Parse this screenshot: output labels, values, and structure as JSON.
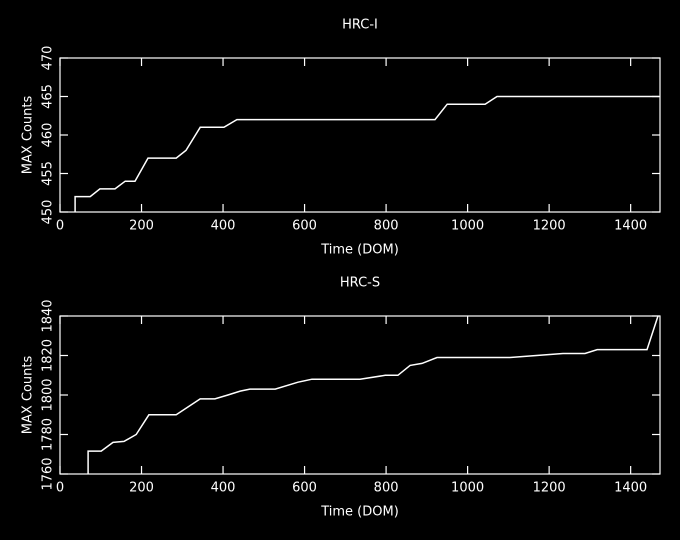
{
  "chart_data": [
    {
      "type": "line",
      "title": "HRC-I",
      "x_label": "Time (DOM)",
      "y_label": "MAX Counts",
      "color": "#ffffff",
      "x": [
        37,
        37,
        74,
        98,
        135,
        160,
        184,
        216,
        285,
        309,
        344,
        402,
        434,
        920,
        950,
        1043,
        1072,
        1470
      ],
      "values": [
        450,
        452,
        452,
        453,
        453,
        454,
        454,
        457,
        457,
        458,
        461,
        461,
        462,
        462,
        464,
        464,
        465,
        465
      ],
      "xlim": [
        0,
        1472
      ],
      "xticks": [
        0,
        200,
        400,
        600,
        800,
        1000,
        1200,
        1400
      ],
      "ylim": [
        450,
        470
      ],
      "yticks": [
        450,
        455,
        460,
        465,
        470
      ]
    },
    {
      "type": "line",
      "title": "HRC-S",
      "x_label": "Time (DOM)",
      "y_label": "MAX Counts",
      "color": "#ffffff",
      "x": [
        69,
        69,
        101,
        130,
        157,
        187,
        218,
        285,
        344,
        380,
        412,
        442,
        466,
        528,
        584,
        618,
        736,
        798,
        829,
        859,
        888,
        925,
        1104,
        1234,
        1288,
        1318,
        1440,
        1467
      ],
      "values": [
        1760,
        1771.6,
        1771.6,
        1776,
        1776.5,
        1780,
        1790,
        1790,
        1798,
        1798,
        1800,
        1802,
        1803,
        1803,
        1806.5,
        1808,
        1808,
        1810,
        1810,
        1815,
        1816,
        1819,
        1819,
        1821,
        1821,
        1823,
        1823,
        1840
      ],
      "xlim": [
        0,
        1472
      ],
      "xticks": [
        0,
        200,
        400,
        600,
        800,
        1000,
        1200,
        1400
      ],
      "ylim": [
        1760,
        1840
      ],
      "yticks": [
        1760,
        1780,
        1800,
        1820,
        1840
      ]
    }
  ]
}
